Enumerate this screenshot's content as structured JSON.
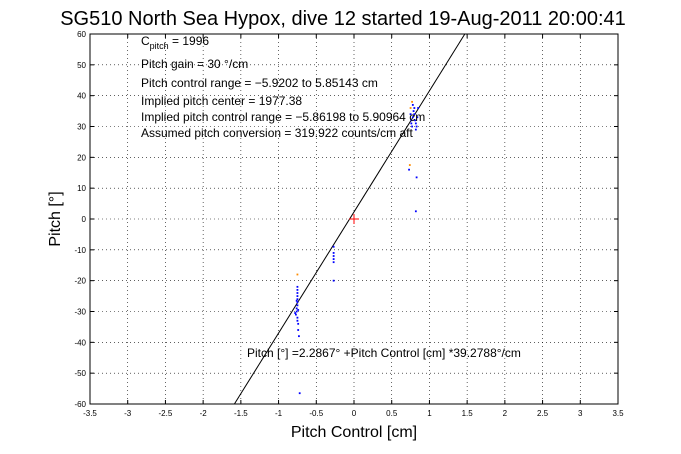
{
  "chart_data": {
    "type": "scatter",
    "title": "SG510 North Sea Hypox, dive 12 started 19-Aug-2011 20:00:41",
    "xlabel": "Pitch Control [cm]",
    "ylabel": "Pitch [°]",
    "xlim": [
      -3.5,
      3.5
    ],
    "ylim": [
      -60,
      60
    ],
    "x_ticks": [
      "-3.5",
      "-3",
      "-2.5",
      "-2",
      "-1.5",
      "-1",
      "-0.5",
      "0",
      "0.5",
      "1",
      "1.5",
      "2",
      "2.5",
      "3",
      "3.5"
    ],
    "y_ticks": [
      "-60",
      "-50",
      "-40",
      "-30",
      "-20",
      "-10",
      "0",
      "10",
      "20",
      "30",
      "40",
      "50",
      "60"
    ],
    "grid": true,
    "annotations": {
      "c_pitch_symbol": "C",
      "c_pitch_sub": "pitch",
      "c_pitch_value": " = 1996",
      "pitch_gain": "Pitch gain = 30 °/cm",
      "control_range": "Pitch control range = −5.9202 to 5.85143 cm",
      "implied_center": "Implied pitch center = 1977.38",
      "implied_range": "Implied pitch control range = −5.86198 to 5.90964 cm",
      "conversion": "Assumed pitch conversion = 319.922 counts/cm aft",
      "fit_equation": "Pitch [°] =2.2867° +Pitch Control [cm] *39.2788°/cm"
    },
    "fit_line": {
      "intercept": 2.2867,
      "slope": 39.2788,
      "color": "#000000"
    },
    "reference_point": {
      "x": 0,
      "y": 0,
      "color": "#ff0000"
    },
    "series": [
      {
        "color": "#0000ff",
        "points": [
          [
            -0.75,
            -22
          ],
          [
            -0.75,
            -23
          ],
          [
            -0.75,
            -24
          ],
          [
            -0.75,
            -25
          ],
          [
            -0.75,
            -26
          ],
          [
            -0.75,
            -27
          ],
          [
            -0.75,
            -28
          ],
          [
            -0.76,
            -29
          ],
          [
            -0.76,
            -30
          ],
          [
            -0.77,
            -31
          ],
          [
            -0.75,
            -32
          ],
          [
            -0.75,
            -33
          ],
          [
            -0.74,
            -34
          ],
          [
            -0.74,
            -36
          ],
          [
            -0.73,
            -38
          ],
          [
            -0.72,
            -56.5
          ],
          [
            -0.76,
            -26.5
          ],
          [
            -0.74,
            -29.5
          ],
          [
            -0.78,
            -30.5
          ],
          [
            -0.27,
            -9
          ],
          [
            -0.27,
            -11
          ],
          [
            -0.27,
            -12
          ],
          [
            -0.27,
            -13
          ],
          [
            -0.27,
            -14
          ],
          [
            -0.27,
            -20
          ],
          [
            0.75,
            34
          ],
          [
            0.76,
            32
          ],
          [
            0.76,
            31
          ],
          [
            0.77,
            30
          ],
          [
            0.78,
            33
          ],
          [
            0.79,
            35
          ],
          [
            0.8,
            36
          ],
          [
            0.8,
            34
          ],
          [
            0.81,
            32
          ],
          [
            0.82,
            31
          ],
          [
            0.83,
            30
          ],
          [
            0.84,
            33
          ],
          [
            0.85,
            36
          ],
          [
            0.82,
            29
          ],
          [
            0.78,
            37
          ],
          [
            0.83,
            13.5
          ],
          [
            0.82,
            2.5
          ],
          [
            0.73,
            16
          ]
        ]
      },
      {
        "color": "#ff8c00",
        "points": [
          [
            -0.75,
            -18
          ],
          [
            0.74,
            17.5
          ],
          [
            0.75,
            36
          ],
          [
            0.77,
            38
          ]
        ]
      }
    ]
  }
}
